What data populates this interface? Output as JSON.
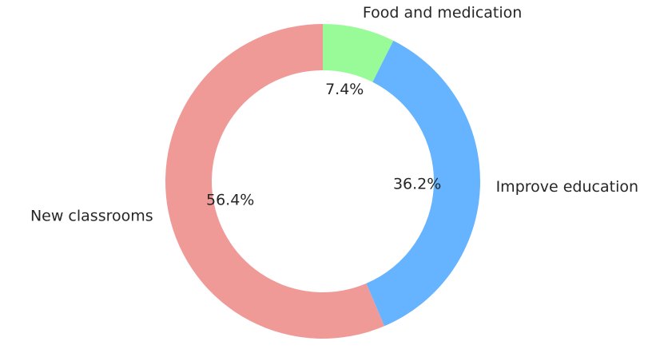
{
  "chart_data": {
    "type": "pie",
    "style": "donut",
    "title": "",
    "start_angle_deg": 90,
    "direction": "clockwise",
    "slices": [
      {
        "label": "Food and medication",
        "value": 7.4,
        "pct_label": "7.4%",
        "color": "#98fb98"
      },
      {
        "label": "Improve education",
        "value": 36.2,
        "pct_label": "36.2%",
        "color": "#66b3ff"
      },
      {
        "label": "New classrooms",
        "value": 56.4,
        "pct_label": "56.4%",
        "color": "#f09a98"
      }
    ]
  }
}
